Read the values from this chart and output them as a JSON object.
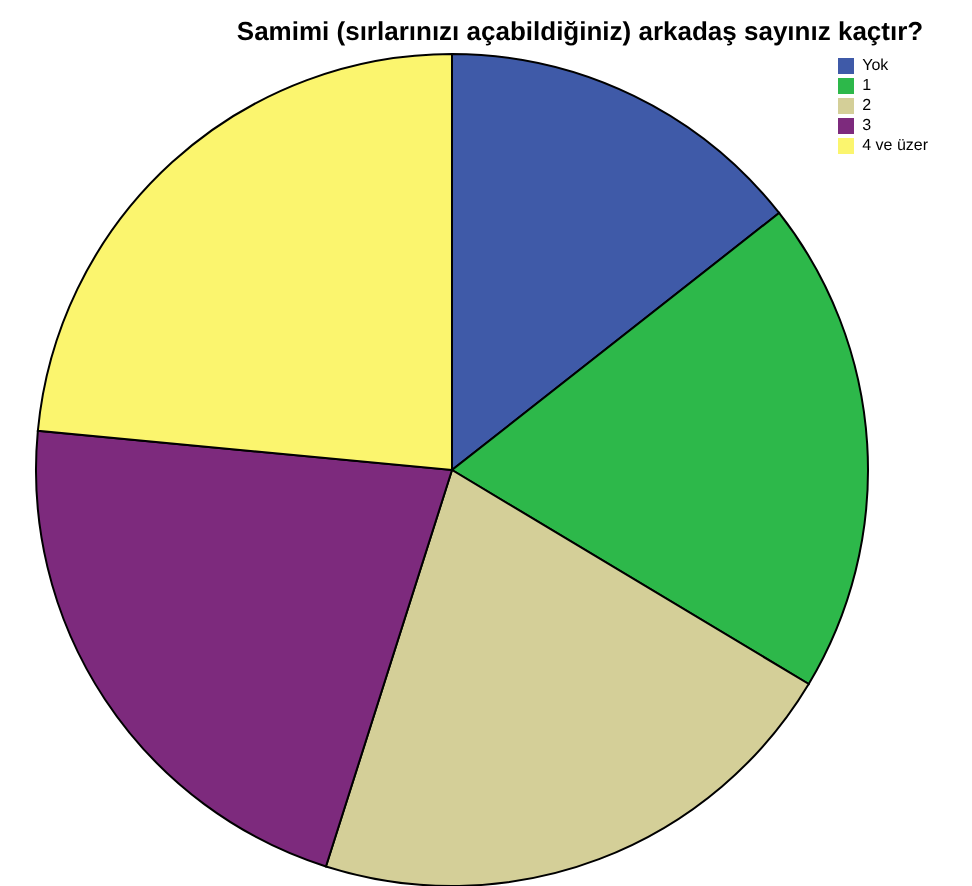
{
  "chart_data": {
    "type": "pie",
    "title": "Samimi (sırlarınızı açabildiğiniz) arkadaş sayınız kaçtır?",
    "categories": [
      "Yok",
      "1",
      "2",
      "3",
      "4 ve üzer"
    ],
    "values": [
      14.4,
      19.2,
      21.3,
      21.6,
      23.5
    ],
    "colors": [
      "#3f5aa8",
      "#2db84a",
      "#d4cf98",
      "#7d2a7d",
      "#fbf56e"
    ],
    "legend": "top right"
  }
}
